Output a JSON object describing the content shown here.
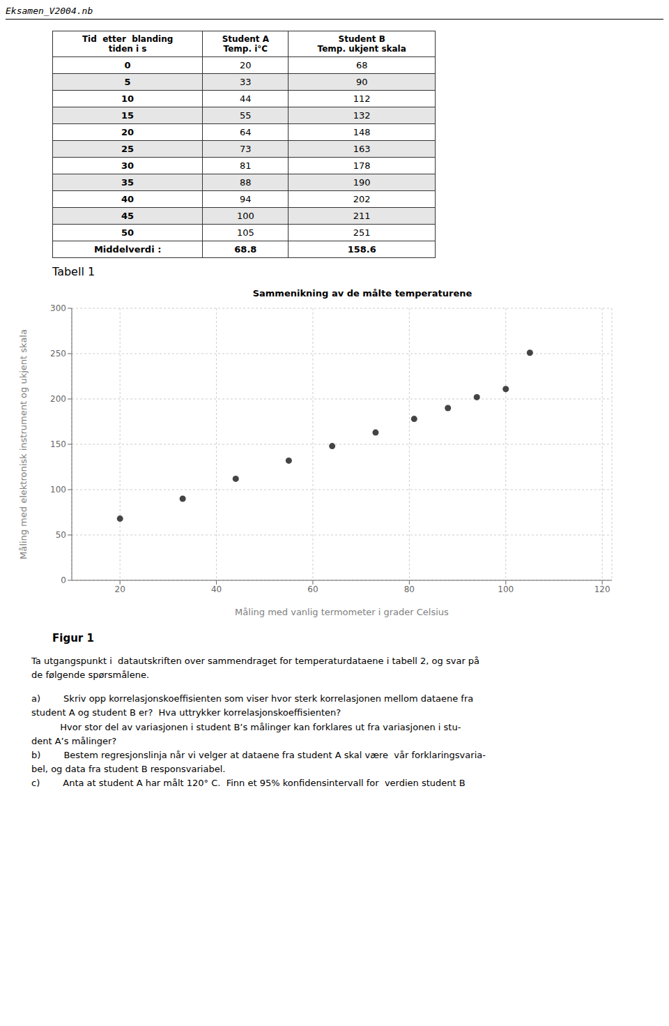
{
  "header": "Eksamen_V2004.nb",
  "table": {
    "title": "Tabell 1",
    "columns": [
      "Tid  etter  blanding\ntiden i s",
      "Student A\nTemp. i°C",
      "Student B\nTemp. ukjent skala"
    ],
    "rows": [
      [
        "0",
        "20",
        "68"
      ],
      [
        "5",
        "33",
        "90"
      ],
      [
        "10",
        "44",
        "112"
      ],
      [
        "15",
        "55",
        "132"
      ],
      [
        "20",
        "64",
        "148"
      ],
      [
        "25",
        "73",
        "163"
      ],
      [
        "30",
        "81",
        "178"
      ],
      [
        "35",
        "88",
        "190"
      ],
      [
        "40",
        "94",
        "202"
      ],
      [
        "45",
        "100",
        "211"
      ],
      [
        "50",
        "105",
        "251"
      ],
      [
        "Middelverdi :",
        "68.8",
        "158.6"
      ]
    ]
  },
  "chart_data": {
    "type": "scatter",
    "title": "Sammenikning av de målte temperaturene",
    "x_label": "Måling med vanlig termometer i grader Celsius",
    "y_label": "Måling med elektronisk instrument  og ukjent skala",
    "x": [
      20,
      33,
      44,
      55,
      64,
      73,
      81,
      88,
      94,
      100,
      105
    ],
    "values": [
      68,
      90,
      112,
      132,
      148,
      163,
      178,
      190,
      202,
      211,
      251
    ],
    "color": "#444444",
    "xlim": [
      10,
      122
    ],
    "xticks": [
      20,
      40,
      60,
      80,
      100,
      120
    ],
    "ylim": [
      0,
      300
    ],
    "yticks": [
      0,
      50,
      100,
      150,
      200,
      250,
      300
    ],
    "grid": true
  },
  "figure_label": "Figur 1",
  "body": [
    "Ta utgangspunkt i  datautskriften over sammendraget for temperaturdataene i tabell 2, og svar på\nde følgende spørsmålene.",
    "a)        Skriv opp korrelasjonskoeffisienten som viser hvor sterk korrelasjonen mellom dataene fra",
    "student A og student B er?  Hva uttrykker korrelasjonskoeffisienten?",
    "          Hvor stor del av variasjonen i student B’s målinger kan forklares ut fra variasjonen i stu-",
    "dent A’s målinger?",
    "b)        Bestem regresjonslinja når vi velger at dataene fra student A skal være  vår forklaringsvaria-",
    "bel, og data fra student B responsvariabel.",
    "c)        Anta at student A har målt 120° C.  Finn et 95% konfidensintervall for  verdien student B"
  ]
}
